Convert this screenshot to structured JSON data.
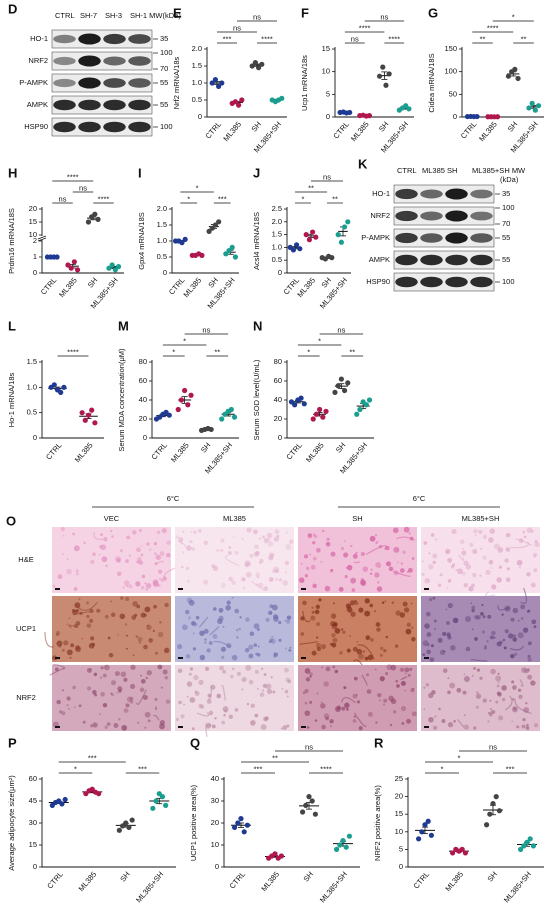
{
  "blots": [
    {
      "panel": "D",
      "columns": [
        "CTRL",
        "SH-7",
        "SH-3",
        "SH-1 MW(kDa)"
      ],
      "rows": [
        "HO-1",
        "NRF2",
        "P-AMPK",
        "AMPK",
        "HSP90"
      ],
      "mw": [
        [
          "35"
        ],
        [
          "100",
          "70"
        ],
        [
          "55"
        ],
        [
          "55"
        ],
        [
          "100"
        ]
      ]
    },
    {
      "panel": "K",
      "columns": [
        "CTRL",
        "ML385",
        "SH",
        "ML385+SH MW"
      ],
      "unit": "(kDa)",
      "rows": [
        "HO-1",
        "NRF2",
        "P-AMPK",
        "AMPK",
        "HSP90"
      ],
      "mw": [
        [
          "35"
        ],
        [
          "100",
          "70"
        ],
        [
          "55"
        ],
        [
          "55"
        ],
        [
          "100"
        ]
      ]
    }
  ],
  "histology": {
    "panel": "O",
    "temps": [
      "6°C",
      "6°C"
    ],
    "columns": [
      "VEC",
      "ML385",
      "SH",
      "ML385+SH"
    ],
    "rows": [
      "H&E",
      "UCP1",
      "NRF2"
    ]
  },
  "chart_data": [
    {
      "type": "dot",
      "panel": "E",
      "ylabel": "Nrf2 mRNA/18s",
      "categories": [
        "CTRL",
        "ML385",
        "SH",
        "ML385+SH"
      ],
      "colors": [
        "#1f3a93",
        "#b0174f",
        "#444444",
        "#1a9e8f"
      ],
      "values": [
        [
          1.0,
          1.1,
          0.9,
          1.0
        ],
        [
          0.4,
          0.45,
          0.35,
          0.5
        ],
        [
          1.5,
          1.6,
          1.45,
          1.55
        ],
        [
          0.5,
          0.45,
          0.5,
          0.55
        ]
      ],
      "ylim": [
        0,
        2
      ],
      "yticks": [
        0,
        0.5,
        {
          "value": 1,
          "label": "1.0"
        },
        1.5,
        {
          "value": 2,
          "label": "2.0"
        }
      ],
      "annotations": [
        {
          "between": [
            "CTRL",
            "ML385"
          ],
          "label": "***"
        },
        {
          "between": [
            "SH",
            "ML385+SH"
          ],
          "label": "****"
        },
        {
          "between": [
            "CTRL",
            "SH"
          ],
          "label": "ns"
        },
        {
          "between": [
            "ML385",
            "ML385+SH"
          ],
          "label": "ns"
        }
      ]
    },
    {
      "type": "dot",
      "panel": "F",
      "ylabel": "Ucp1 mRNA/18s",
      "categories": [
        "CTRL",
        "ML385",
        "SH",
        "ML385+SH"
      ],
      "colors": [
        "#1f3a93",
        "#b0174f",
        "#444444",
        "#1a9e8f"
      ],
      "values": [
        [
          1.0,
          1.1,
          0.9,
          1.0
        ],
        [
          0.3,
          0.4,
          0.2,
          0.3
        ],
        [
          9,
          11,
          7,
          9.5
        ],
        [
          1.5,
          2,
          2.5,
          1.8
        ]
      ],
      "ylim": [
        0,
        15
      ],
      "yticks": [
        0,
        5,
        10,
        15
      ],
      "annotations": [
        {
          "between": [
            "CTRL",
            "ML385"
          ],
          "label": "ns"
        },
        {
          "between": [
            "SH",
            "ML385+SH"
          ],
          "label": "****"
        },
        {
          "between": [
            "CTRL",
            "SH"
          ],
          "label": "****"
        },
        {
          "between": [
            "ML385",
            "ML385+SH"
          ],
          "label": "ns"
        }
      ]
    },
    {
      "type": "dot",
      "panel": "G",
      "ylabel": "Cidea mRNA/18S",
      "categories": [
        "CTRL",
        "ML385",
        "SH",
        "ML385+SH"
      ],
      "colors": [
        "#1f3a93",
        "#b0174f",
        "#444444",
        "#1a9e8f"
      ],
      "values": [
        [
          1,
          1.2,
          0.9,
          1
        ],
        [
          0.5,
          0.6,
          0.4,
          0.5
        ],
        [
          90,
          100,
          105,
          85
        ],
        [
          20,
          30,
          15,
          25
        ]
      ],
      "ylim": [
        0,
        150
      ],
      "yticks": [
        0,
        50,
        100,
        150
      ],
      "annotations": [
        {
          "between": [
            "CTRL",
            "ML385"
          ],
          "label": "**"
        },
        {
          "between": [
            "SH",
            "ML385+SH"
          ],
          "label": "**"
        },
        {
          "between": [
            "CTRL",
            "SH"
          ],
          "label": "****"
        },
        {
          "between": [
            "ML385",
            "ML385+SH"
          ],
          "label": "*"
        }
      ]
    },
    {
      "type": "dot",
      "panel": "H",
      "ylabel": "Prdm16 mRNA/18S",
      "categories": [
        "CTRL",
        "ML385",
        "SH",
        "ML385+SH"
      ],
      "colors": [
        "#1f3a93",
        "#b0174f",
        "#444444",
        "#1a9e8f"
      ],
      "values": [
        [
          1,
          1,
          1,
          1
        ],
        [
          0.5,
          0.3,
          0.7,
          0.2
        ],
        [
          15,
          17,
          18,
          16
        ],
        [
          0.3,
          0.5,
          0.2,
          0.4
        ]
      ],
      "ylim": [
        0,
        20
      ],
      "ybreak": [
        2,
        10
      ],
      "yticks": [
        0,
        1,
        2,
        10,
        15,
        20
      ],
      "annotations": [
        {
          "between": [
            "CTRL",
            "ML385"
          ],
          "label": "ns"
        },
        {
          "between": [
            "ML385",
            "SH"
          ],
          "label": "ns"
        },
        {
          "between": [
            "SH",
            "ML385+SH"
          ],
          "label": "****"
        },
        {
          "between": [
            "CTRL",
            "SH"
          ],
          "label": "****"
        }
      ]
    },
    {
      "type": "dot",
      "panel": "I",
      "ylabel": "Gpx4 mRNA/18S",
      "categories": [
        "CTRL",
        "ML385",
        "SH",
        "ML385+SH"
      ],
      "colors": [
        "#1f3a93",
        "#b0174f",
        "#444444",
        "#1a9e8f"
      ],
      "values": [
        [
          1,
          1,
          0.95,
          1.05
        ],
        [
          0.55,
          0.55,
          0.6,
          0.55
        ],
        [
          1.3,
          1.4,
          1.5,
          1.6
        ],
        [
          0.6,
          0.7,
          0.8,
          0.5
        ]
      ],
      "ylim": [
        0,
        2
      ],
      "yticks": [
        0,
        0.5,
        {
          "value": 1,
          "label": "1.0"
        },
        1.5,
        {
          "value": 2,
          "label": "2.0"
        }
      ],
      "annotations": [
        {
          "between": [
            "CTRL",
            "ML385"
          ],
          "label": "*"
        },
        {
          "between": [
            "CTRL",
            "SH"
          ],
          "label": "*"
        },
        {
          "between": [
            "SH",
            "ML385+SH"
          ],
          "label": "***"
        }
      ]
    },
    {
      "type": "dot",
      "panel": "J",
      "ylabel": "Acsl4 mRNA/18S",
      "categories": [
        "CTRL",
        "ML385",
        "SH",
        "ML385+SH"
      ],
      "colors": [
        "#1f3a93",
        "#b0174f",
        "#444444",
        "#1a9e8f"
      ],
      "values": [
        [
          1,
          0.9,
          1.1,
          0.95
        ],
        [
          1.5,
          1.3,
          1.6,
          1.4
        ],
        [
          0.6,
          0.55,
          0.65,
          0.6
        ],
        [
          1.5,
          1.2,
          1.8,
          2.0
        ]
      ],
      "ylim": [
        0,
        2.5
      ],
      "yticks": [
        0,
        0.5,
        {
          "value": 1,
          "label": "1.0"
        },
        1.5,
        {
          "value": 2,
          "label": "2.0"
        },
        2.5
      ],
      "annotations": [
        {
          "between": [
            "CTRL",
            "ML385"
          ],
          "label": "*"
        },
        {
          "between": [
            "SH",
            "ML385+SH"
          ],
          "label": "**"
        },
        {
          "between": [
            "CTRL",
            "SH"
          ],
          "label": "**"
        },
        {
          "between": [
            "ML385",
            "ML385+SH"
          ],
          "label": "ns"
        }
      ]
    },
    {
      "type": "dot",
      "panel": "L",
      "ylabel": "Ho-1 mRNA/18s",
      "categories": [
        "CTRL",
        "ML385"
      ],
      "colors": [
        "#1f3a93",
        "#b0174f"
      ],
      "values": [
        [
          1,
          1.05,
          0.95,
          0.9,
          1.0
        ],
        [
          0.5,
          0.35,
          0.45,
          0.55,
          0.3
        ]
      ],
      "ylim": [
        0,
        1.5
      ],
      "yticks": [
        0,
        0.5,
        {
          "value": 1,
          "label": "1.0"
        },
        1.5
      ],
      "annotations": [
        {
          "between": [
            "CTRL",
            "ML385"
          ],
          "label": "****"
        }
      ]
    },
    {
      "type": "dot",
      "panel": "M",
      "ylabel": "Serum MDA concentration(μM)",
      "categories": [
        "CTRL",
        "ML385",
        "SH",
        "ML385+SH"
      ],
      "colors": [
        "#1f3a93",
        "#b0174f",
        "#444444",
        "#1a9e8f"
      ],
      "values": [
        [
          20,
          22,
          25,
          27,
          24
        ],
        [
          30,
          40,
          50,
          35,
          45
        ],
        [
          8,
          9,
          10,
          9
        ],
        [
          20,
          25,
          28,
          30,
          22
        ]
      ],
      "ylim": [
        0,
        80
      ],
      "yticks": [
        0,
        20,
        40,
        60,
        80
      ],
      "annotations": [
        {
          "between": [
            "CTRL",
            "ML385"
          ],
          "label": "*"
        },
        {
          "between": [
            "SH",
            "ML385+SH"
          ],
          "label": "**"
        },
        {
          "between": [
            "CTRL",
            "SH"
          ],
          "label": "*"
        },
        {
          "between": [
            "ML385",
            "ML385+SH"
          ],
          "label": "ns"
        }
      ]
    },
    {
      "type": "dot",
      "panel": "N",
      "ylabel": "Serum SOD level(U/mL)",
      "categories": [
        "CTRL",
        "ML385",
        "SH",
        "ML385+SH"
      ],
      "colors": [
        "#1f3a93",
        "#b0174f",
        "#444444",
        "#1a9e8f"
      ],
      "values": [
        [
          38,
          35,
          40,
          42,
          36
        ],
        [
          20,
          25,
          30,
          22,
          28
        ],
        [
          48,
          55,
          62,
          50,
          58
        ],
        [
          25,
          30,
          38,
          35,
          40
        ]
      ],
      "ylim": [
        0,
        80
      ],
      "yticks": [
        0,
        20,
        40,
        60,
        80
      ],
      "annotations": [
        {
          "between": [
            "CTRL",
            "ML385"
          ],
          "label": "*"
        },
        {
          "between": [
            "SH",
            "ML385+SH"
          ],
          "label": "**"
        },
        {
          "between": [
            "CTRL",
            "SH"
          ],
          "label": "*"
        },
        {
          "between": [
            "ML385",
            "ML385+SH"
          ],
          "label": "ns"
        }
      ]
    },
    {
      "type": "dot",
      "panel": "P",
      "ylabel": "Average adipocyte size(μm²)",
      "categories": [
        "CTRL",
        "ML385",
        "SH",
        "ML385+SH"
      ],
      "colors": [
        "#1f3a93",
        "#b0174f",
        "#444444",
        "#1a9e8f"
      ],
      "values": [
        [
          42,
          44,
          45,
          43,
          46
        ],
        [
          50,
          52,
          53,
          51,
          50
        ],
        [
          25,
          28,
          30,
          27,
          32
        ],
        [
          40,
          45,
          50,
          48,
          42
        ]
      ],
      "ylim": [
        0,
        60
      ],
      "yticks": [
        0,
        15,
        30,
        45,
        60
      ],
      "annotations": [
        {
          "between": [
            "CTRL",
            "ML385"
          ],
          "label": "*"
        },
        {
          "between": [
            "SH",
            "ML385+SH"
          ],
          "label": "***"
        },
        {
          "between": [
            "CTRL",
            "SH"
          ],
          "label": "***"
        }
      ]
    },
    {
      "type": "dot",
      "panel": "Q",
      "ylabel": "UCP1 positive area(%)",
      "categories": [
        "CTRL",
        "ML385",
        "SH",
        "ML385+SH"
      ],
      "colors": [
        "#1f3a93",
        "#b0174f",
        "#444444",
        "#1a9e8f"
      ],
      "values": [
        [
          18,
          20,
          22,
          16,
          19
        ],
        [
          4,
          5,
          6,
          4,
          5
        ],
        [
          25,
          28,
          32,
          30,
          24
        ],
        [
          8,
          10,
          12,
          9,
          14
        ]
      ],
      "ylim": [
        0,
        40
      ],
      "yticks": [
        0,
        10,
        20,
        30,
        40
      ],
      "annotations": [
        {
          "between": [
            "CTRL",
            "ML385"
          ],
          "label": "***"
        },
        {
          "between": [
            "SH",
            "ML385+SH"
          ],
          "label": "****"
        },
        {
          "between": [
            "CTRL",
            "SH"
          ],
          "label": "**"
        },
        {
          "between": [
            "ML385",
            "ML385+SH"
          ],
          "label": "ns"
        }
      ]
    },
    {
      "type": "dot",
      "panel": "R",
      "ylabel": "NRF2 positive area(%)",
      "categories": [
        "CTRL",
        "ML385",
        "SH",
        "ML385+SH"
      ],
      "colors": [
        "#1f3a93",
        "#b0174f",
        "#444444",
        "#1a9e8f"
      ],
      "values": [
        [
          8,
          10,
          12,
          13,
          9
        ],
        [
          4,
          5,
          4.5,
          5,
          4
        ],
        [
          12,
          15,
          18,
          20,
          16
        ],
        [
          5,
          6,
          7,
          8,
          6
        ]
      ],
      "ylim": [
        0,
        25
      ],
      "yticks": [
        0,
        5,
        10,
        15,
        20,
        25
      ],
      "annotations": [
        {
          "between": [
            "CTRL",
            "ML385"
          ],
          "label": "*"
        },
        {
          "between": [
            "SH",
            "ML385+SH"
          ],
          "label": "***"
        },
        {
          "between": [
            "CTRL",
            "SH"
          ],
          "label": "*"
        },
        {
          "between": [
            "ML385",
            "ML385+SH"
          ],
          "label": "ns"
        }
      ]
    }
  ]
}
